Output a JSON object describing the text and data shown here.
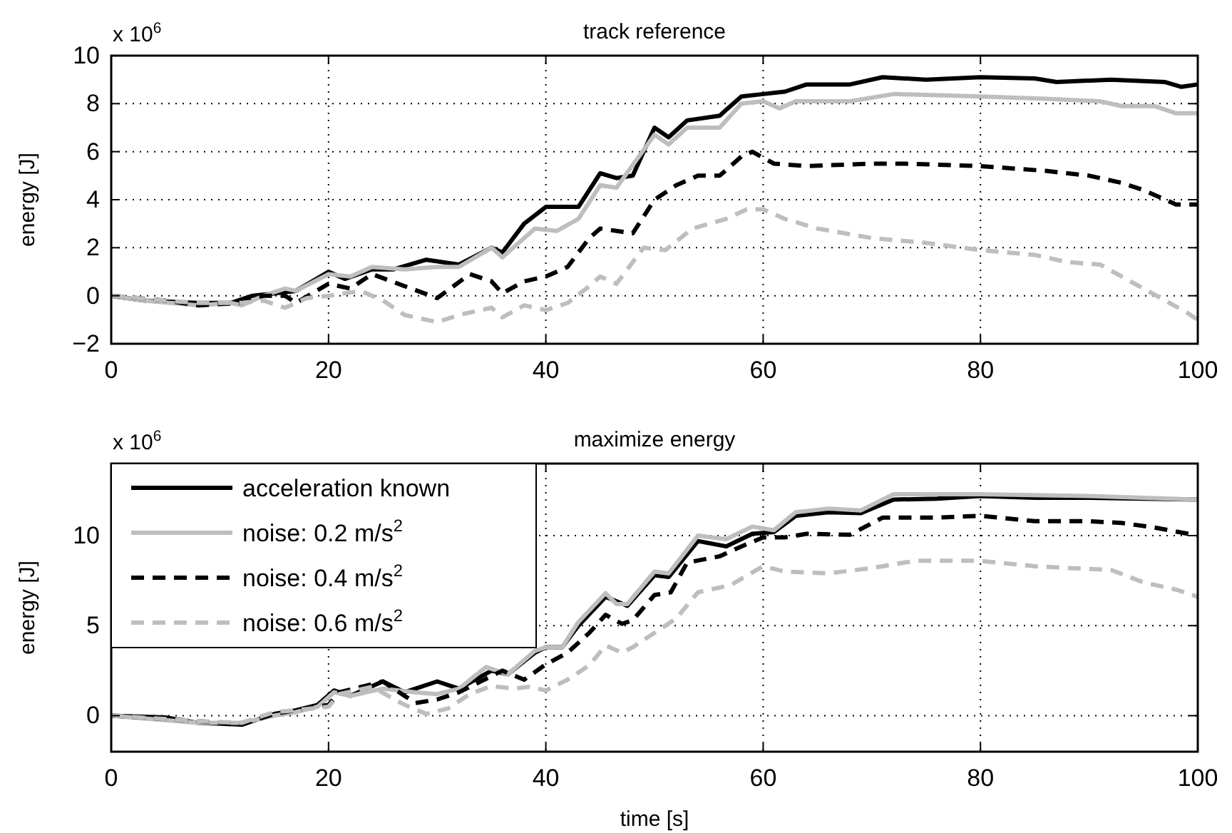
{
  "chart_data": [
    {
      "type": "line",
      "title": "track reference",
      "ylabel": "energy [J]",
      "annotations": [
        "x 10$^{6}$"
      ],
      "xlim": [
        0,
        100
      ],
      "xticks": [
        0,
        20,
        40,
        60,
        80,
        100
      ],
      "ylim": [
        -2,
        10
      ],
      "yticks": [
        -2,
        0,
        2,
        4,
        6,
        8,
        10
      ],
      "grid": true,
      "series": [
        {
          "color": "#000000",
          "line_style": "solid",
          "x": [
            0,
            3,
            8,
            11,
            13,
            17,
            20,
            21.5,
            24,
            26,
            29,
            32,
            35,
            36,
            38,
            40,
            43,
            45,
            46.5,
            48,
            50,
            51.3,
            53,
            56,
            58,
            60,
            62,
            64,
            68,
            71,
            75,
            80,
            85,
            87,
            92,
            97,
            98.5,
            100
          ],
          "values": [
            0,
            -0.2,
            -0.3,
            -0.3,
            0,
            0.2,
            1.0,
            0.7,
            1.1,
            1.1,
            1.5,
            1.3,
            2.0,
            1.8,
            3.0,
            3.7,
            3.7,
            5.1,
            4.9,
            5.0,
            7.0,
            6.6,
            7.3,
            7.5,
            8.3,
            8.4,
            8.5,
            8.8,
            8.8,
            9.1,
            9.0,
            9.1,
            9.05,
            8.9,
            9.0,
            8.9,
            8.7,
            8.8
          ]
        },
        {
          "color": "#bebebe",
          "line_style": "solid",
          "x": [
            0,
            3,
            8,
            11,
            12,
            14,
            16,
            17,
            20,
            22,
            24,
            27,
            30,
            32,
            35,
            36,
            39,
            41,
            43,
            45,
            46.5,
            50,
            51.3,
            53,
            56,
            58,
            60,
            61.5,
            63,
            68,
            72,
            80,
            86,
            91,
            93,
            96,
            98,
            100
          ],
          "values": [
            0,
            -0.2,
            -0.4,
            -0.3,
            -0.4,
            0,
            0.3,
            0.2,
            0.9,
            0.8,
            1.2,
            1.1,
            1.2,
            1.2,
            2.0,
            1.6,
            2.8,
            2.7,
            3.2,
            4.6,
            4.5,
            6.7,
            6.3,
            7.0,
            7.0,
            8.0,
            8.1,
            7.8,
            8.1,
            8.1,
            8.4,
            8.3,
            8.2,
            8.1,
            7.9,
            7.9,
            7.6,
            7.6
          ]
        },
        {
          "color": "#000000",
          "line_style": "dashed",
          "x": [
            0,
            5,
            8,
            12,
            14,
            16,
            17,
            20,
            22,
            24,
            27,
            30,
            33,
            35,
            36,
            38,
            40,
            42,
            44,
            45,
            46.5,
            48,
            50,
            52,
            54,
            56,
            58,
            59,
            61,
            64,
            70,
            73,
            80,
            86,
            90,
            93,
            95,
            98,
            100
          ],
          "values": [
            0,
            -0.2,
            -0.4,
            -0.3,
            0,
            0,
            -0.3,
            0.5,
            0.3,
            0.9,
            0.4,
            -0.1,
            0.9,
            0.6,
            0.1,
            0.6,
            0.8,
            1.2,
            2.4,
            2.8,
            2.7,
            2.6,
            4.0,
            4.6,
            5.0,
            5.0,
            5.8,
            6.0,
            5.5,
            5.4,
            5.5,
            5.5,
            5.4,
            5.2,
            5.0,
            4.7,
            4.4,
            3.8,
            3.8
          ]
        },
        {
          "color": "#bebebe",
          "line_style": "dashed",
          "x": [
            0,
            5,
            8,
            12,
            14,
            16,
            18,
            20,
            23,
            25,
            27,
            30,
            32,
            35,
            36,
            38,
            40,
            42,
            44,
            45,
            46.5,
            49,
            51,
            53.5,
            56.6,
            58.5,
            60,
            62,
            65,
            70,
            75,
            80,
            85,
            88,
            91,
            93,
            95,
            97,
            99,
            100
          ],
          "values": [
            0,
            -0.2,
            -0.3,
            -0.3,
            -0.2,
            -0.5,
            -0.1,
            0,
            0.2,
            -0.2,
            -0.8,
            -1.1,
            -0.8,
            -0.5,
            -0.9,
            -0.4,
            -0.6,
            -0.3,
            0.4,
            0.8,
            0.5,
            2.0,
            1.9,
            2.8,
            3.2,
            3.6,
            3.6,
            3.2,
            2.8,
            2.4,
            2.2,
            1.9,
            1.7,
            1.4,
            1.3,
            0.8,
            0.3,
            -0.2,
            -0.7,
            -1.0
          ]
        }
      ]
    },
    {
      "type": "line",
      "title": "maximize energy",
      "xlabel": "time [s]",
      "ylabel": "energy [J]",
      "annotations": [
        "x 10$^{6}$"
      ],
      "xlim": [
        0,
        100
      ],
      "xticks": [
        0,
        20,
        40,
        60,
        80,
        100
      ],
      "ylim": [
        -2,
        14
      ],
      "yticks": [
        0,
        5,
        10
      ],
      "grid": true,
      "legend": "top left",
      "series": [
        {
          "name": "acceleration known",
          "color": "#000000",
          "line_style": "solid",
          "x": [
            0,
            5,
            8,
            12,
            15,
            17,
            19,
            20.5,
            22,
            25,
            27,
            30,
            32,
            35,
            36.5,
            39,
            40,
            41.5,
            43,
            45.5,
            47.5,
            50,
            51.3,
            54,
            56.6,
            59,
            61,
            63,
            66,
            69,
            72,
            76,
            80,
            85,
            90,
            100
          ],
          "values": [
            0,
            -0.1,
            -0.4,
            -0.5,
            0.1,
            0.3,
            0.6,
            1.4,
            1.1,
            1.9,
            1.3,
            1.9,
            1.5,
            2.5,
            2.3,
            3.5,
            3.8,
            3.8,
            5.0,
            6.6,
            6.1,
            7.8,
            7.7,
            9.7,
            9.4,
            10.1,
            10.2,
            11.1,
            11.3,
            11.25,
            12.0,
            12.05,
            12.2,
            12.1,
            12.1,
            12.0
          ]
        },
        {
          "name": "noise: 0.2 m/s$^{2}$",
          "color": "#bebebe",
          "line_style": "solid",
          "x": [
            0,
            8,
            12,
            15,
            17,
            19,
            20.5,
            22,
            25,
            28,
            30,
            32,
            34.5,
            36.5,
            39,
            40,
            41.5,
            43,
            45.5,
            46.5,
            47.5,
            50,
            51.3,
            54,
            56.6,
            59,
            61,
            63,
            66,
            69,
            72,
            80,
            90,
            100
          ],
          "values": [
            0,
            -0.4,
            -0.4,
            0,
            0.2,
            0.5,
            1.3,
            1.1,
            1.5,
            1.3,
            1.2,
            1.5,
            2.7,
            2.3,
            3.6,
            3.8,
            3.8,
            5.2,
            6.8,
            6.2,
            6.2,
            8.0,
            7.9,
            10.0,
            9.8,
            10.5,
            10.3,
            11.3,
            11.5,
            11.4,
            12.3,
            12.3,
            12.2,
            12.0
          ]
        },
        {
          "name": "noise: 0.4 m/s$^{2}$",
          "color": "#000000",
          "line_style": "dashed",
          "x": [
            0,
            8,
            12,
            15,
            17,
            20,
            21,
            25,
            28,
            30,
            32,
            35,
            36,
            38,
            40,
            42,
            44,
            45.5,
            47,
            48,
            50,
            51.5,
            53,
            56,
            58,
            60,
            62,
            64,
            68,
            71,
            76,
            80,
            85,
            90,
            93,
            96,
            100
          ],
          "values": [
            0,
            -0.3,
            -0.5,
            0.1,
            0.3,
            0.6,
            1.3,
            1.9,
            0.7,
            0.9,
            1.3,
            2.2,
            2.5,
            2.0,
            2.85,
            3.5,
            4.6,
            5.6,
            5.1,
            5.3,
            6.7,
            6.85,
            8.5,
            8.85,
            9.4,
            9.9,
            9.9,
            10.1,
            10.05,
            11.0,
            11.0,
            11.1,
            10.8,
            10.8,
            10.7,
            10.45,
            10.0
          ]
        },
        {
          "name": "noise: 0.6 m/s$^{2}$",
          "color": "#bebebe",
          "line_style": "dashed",
          "x": [
            0,
            8,
            12,
            15,
            17,
            20,
            21,
            24,
            27,
            29,
            31,
            33,
            35,
            37,
            38.5,
            40,
            42,
            44,
            45.5,
            47,
            48,
            51,
            52,
            54,
            57,
            60,
            62,
            66,
            70,
            74,
            80,
            85,
            88,
            92,
            95,
            98,
            100
          ],
          "values": [
            0,
            -0.3,
            -0.4,
            0.2,
            0.3,
            0.5,
            1.2,
            1.6,
            0.6,
            0.1,
            0.4,
            1.2,
            1.65,
            1.5,
            1.6,
            1.4,
            2.0,
            2.8,
            3.9,
            3.5,
            3.8,
            5.0,
            5.4,
            6.85,
            7.25,
            8.3,
            8.0,
            7.9,
            8.2,
            8.6,
            8.6,
            8.3,
            8.2,
            8.1,
            7.4,
            7.0,
            6.6
          ]
        }
      ]
    }
  ]
}
